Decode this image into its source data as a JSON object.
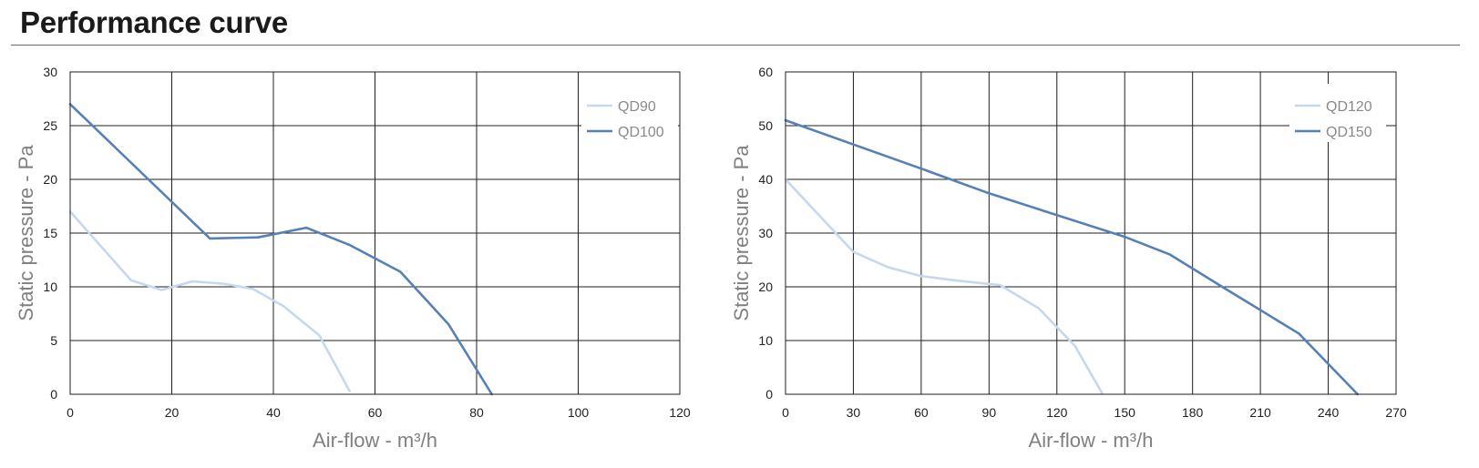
{
  "page": {
    "title": "Performance curve"
  },
  "chart_data": [
    {
      "type": "line",
      "xlabel": "Air-flow - m³/h",
      "ylabel": "Static pressure - Pa",
      "xlim": [
        0,
        120
      ],
      "ylim": [
        0,
        30
      ],
      "xticks": [
        0,
        20,
        40,
        60,
        80,
        100,
        120
      ],
      "yticks": [
        0,
        5,
        10,
        15,
        20,
        25,
        30
      ],
      "grid": true,
      "legend_position": "top-right",
      "series": [
        {
          "name": "QD90",
          "color": "#c5d8ee",
          "x": [
            0,
            12,
            18,
            24,
            30,
            36,
            42,
            49,
            55
          ],
          "y": [
            17,
            10.6,
            9.7,
            10.5,
            10.3,
            9.8,
            8.2,
            5.5,
            0.3
          ]
        },
        {
          "name": "QD100",
          "color": "#5681b7",
          "x": [
            0,
            27.5,
            37,
            46.5,
            55,
            65,
            74.5,
            83
          ],
          "y": [
            27,
            14.5,
            14.6,
            15.5,
            13.9,
            11.4,
            6.5,
            0
          ]
        }
      ]
    },
    {
      "type": "line",
      "xlabel": "Air-flow - m³/h",
      "ylabel": "Static pressure - Pa",
      "xlim": [
        0,
        270
      ],
      "ylim": [
        0,
        60
      ],
      "xticks": [
        0,
        30,
        60,
        90,
        120,
        150,
        180,
        210,
        240,
        270
      ],
      "yticks": [
        0,
        10,
        20,
        30,
        40,
        50,
        60
      ],
      "grid": true,
      "legend_position": "top-right",
      "series": [
        {
          "name": "QD120",
          "color": "#c5d8ee",
          "x": [
            0,
            30,
            45,
            60,
            75,
            95,
            112,
            128,
            140
          ],
          "y": [
            40,
            26.5,
            23.7,
            22,
            21.2,
            20.3,
            16,
            9,
            0.2
          ]
        },
        {
          "name": "QD150",
          "color": "#5681b7",
          "x": [
            0,
            60,
            90,
            150,
            170,
            195,
            227,
            253
          ],
          "y": [
            51,
            42,
            37.4,
            29.3,
            26,
            19.5,
            11.3,
            0
          ]
        }
      ]
    }
  ]
}
